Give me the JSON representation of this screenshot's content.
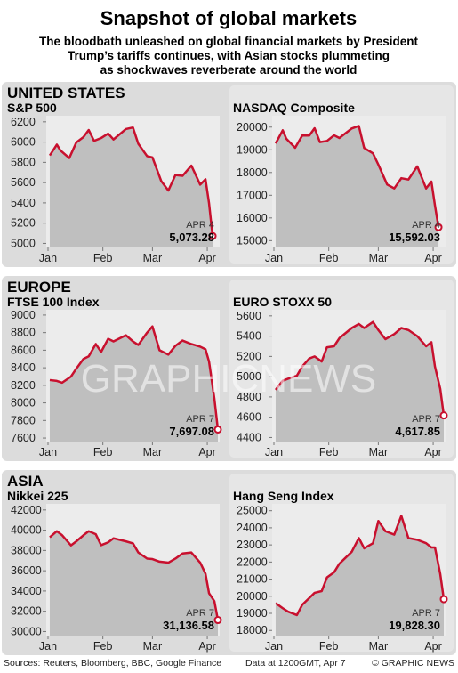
{
  "title": "Snapshot of global markets",
  "subtitle": [
    "The bloodbath unleashed on global financial markets by President",
    "Trump’s tariffs continues, with Asian stocks plummeting",
    "as shockwaves reverberate around the world"
  ],
  "sections": [
    "UNITED STATES",
    "EUROPE",
    "ASIA"
  ],
  "watermark": "GRAPHICNEWS",
  "footer": {
    "sources": "Sources: Reuters, Bloomberg, BBC, Google Finance",
    "note": "Data at 1200GMT, Apr 7",
    "credit": "© GRAPHIC NEWS"
  },
  "chart_data": [
    {
      "type": "line",
      "title": "S&P 500",
      "color": "#c8102e",
      "x": [
        2,
        6,
        8,
        13,
        17,
        21,
        24,
        27,
        31,
        35,
        38,
        45,
        49,
        52,
        57,
        60,
        65,
        69,
        73,
        77,
        82,
        87,
        90,
        92,
        94
      ],
      "values": [
        5868,
        5975,
        5918,
        5842,
        5997,
        6049,
        6119,
        6012,
        6040,
        6084,
        6026,
        6129,
        6144,
        5983,
        5861,
        5849,
        5614,
        5522,
        5675,
        5667,
        5768,
        5580,
        5633,
        5396,
        5073.28
      ],
      "xlim": [
        0,
        98
      ],
      "xticks": [
        {
          "value": 1,
          "label": "Jan"
        },
        {
          "value": 32,
          "label": "Feb"
        },
        {
          "value": 60,
          "label": "Mar"
        },
        {
          "value": 91,
          "label": "Apr"
        }
      ],
      "ylim": [
        4960,
        6260
      ],
      "yticks": [
        5000,
        5200,
        5400,
        5600,
        5800,
        6000,
        6200
      ],
      "annotation_date": "APR 4",
      "annotation_label": "5,073.28"
    },
    {
      "type": "line",
      "title": "NASDAQ Composite",
      "color": "#c8102e",
      "x": [
        2,
        6,
        8,
        13,
        17,
        21,
        24,
        27,
        31,
        35,
        38,
        45,
        49,
        52,
        57,
        60,
        65,
        69,
        73,
        77,
        82,
        87,
        90,
        92,
        94
      ],
      "values": [
        19280,
        19860,
        19490,
        19090,
        19630,
        19630,
        19950,
        19340,
        19390,
        19640,
        19520,
        19940,
        20050,
        19080,
        18840,
        18350,
        17470,
        17300,
        17750,
        17690,
        18270,
        17300,
        17600,
        16550,
        15592.03
      ],
      "xlim": [
        0,
        98
      ],
      "xticks": [
        {
          "value": 1,
          "label": "Jan"
        },
        {
          "value": 32,
          "label": "Feb"
        },
        {
          "value": 60,
          "label": "Mar"
        },
        {
          "value": 91,
          "label": "Apr"
        }
      ],
      "ylim": [
        14700,
        20500
      ],
      "yticks": [
        15000,
        16000,
        17000,
        18000,
        19000,
        20000
      ],
      "annotation_date": "APR 4",
      "annotation_label": "15,592.03"
    },
    {
      "type": "line",
      "title": "FTSE 100 Index",
      "color": "#c8102e",
      "x": [
        2,
        6,
        9,
        14,
        17,
        21,
        24,
        28,
        31,
        35,
        38,
        45,
        49,
        52,
        57,
        60,
        64,
        69,
        73,
        77,
        82,
        87,
        90,
        92,
        95,
        97
      ],
      "values": [
        8260,
        8250,
        8230,
        8300,
        8390,
        8500,
        8530,
        8670,
        8580,
        8730,
        8700,
        8770,
        8700,
        8660,
        8800,
        8870,
        8600,
        8550,
        8650,
        8710,
        8670,
        8640,
        8610,
        8470,
        8050,
        7697.08
      ],
      "xlim": [
        0,
        98
      ],
      "xticks": [
        {
          "value": 1,
          "label": "Jan"
        },
        {
          "value": 32,
          "label": "Feb"
        },
        {
          "value": 60,
          "label": "Mar"
        },
        {
          "value": 91,
          "label": "Apr"
        }
      ],
      "ylim": [
        7560,
        9060
      ],
      "yticks": [
        7600,
        7800,
        8000,
        8200,
        8400,
        8600,
        8800,
        9000
      ],
      "annotation_date": "APR 7",
      "annotation_label": "7,697.08"
    },
    {
      "type": "line",
      "title": "EURO STOXX 50",
      "color": "#c8102e",
      "x": [
        2,
        6,
        9,
        14,
        17,
        21,
        24,
        28,
        31,
        35,
        38,
        45,
        49,
        52,
        57,
        60,
        64,
        69,
        73,
        77,
        82,
        87,
        90,
        92,
        95,
        97
      ],
      "values": [
        4870,
        4960,
        4980,
        5010,
        5100,
        5180,
        5200,
        5150,
        5290,
        5300,
        5380,
        5480,
        5520,
        5480,
        5540,
        5460,
        5370,
        5420,
        5480,
        5460,
        5400,
        5300,
        5340,
        5100,
        4880,
        4617.85
      ],
      "xlim": [
        0,
        98
      ],
      "xticks": [
        {
          "value": 1,
          "label": "Jan"
        },
        {
          "value": 32,
          "label": "Feb"
        },
        {
          "value": 60,
          "label": "Mar"
        },
        {
          "value": 91,
          "label": "Apr"
        }
      ],
      "ylim": [
        4360,
        5660
      ],
      "yticks": [
        4400,
        4600,
        4800,
        5000,
        5200,
        5400,
        5600
      ],
      "annotation_date": "APR 7",
      "annotation_label": "4,617.85"
    },
    {
      "type": "line",
      "title": "Nikkei 225",
      "color": "#c8102e",
      "x": [
        2,
        6,
        9,
        14,
        17,
        21,
        24,
        28,
        31,
        35,
        38,
        45,
        49,
        52,
        57,
        60,
        64,
        69,
        73,
        77,
        82,
        87,
        90,
        92,
        95,
        97
      ],
      "values": [
        39300,
        39900,
        39500,
        38500,
        38900,
        39500,
        39900,
        39600,
        38520,
        38800,
        39200,
        38900,
        38700,
        37800,
        37200,
        37150,
        36900,
        36800,
        37200,
        37700,
        37800,
        36800,
        35700,
        33780,
        33000,
        31136.58
      ],
      "xlim": [
        0,
        98
      ],
      "xticks": [
        {
          "value": 1,
          "label": "Jan"
        },
        {
          "value": 32,
          "label": "Feb"
        },
        {
          "value": 60,
          "label": "Mar"
        },
        {
          "value": 91,
          "label": "Apr"
        }
      ],
      "ylim": [
        29600,
        42600
      ],
      "yticks": [
        30000,
        32000,
        34000,
        36000,
        38000,
        40000,
        42000
      ],
      "annotation_date": "APR 7",
      "annotation_label": "31,136.58"
    },
    {
      "type": "line",
      "title": "Hang Seng Index",
      "color": "#c8102e",
      "x": [
        2,
        6,
        9,
        14,
        17,
        21,
        24,
        28,
        31,
        35,
        38,
        45,
        49,
        52,
        57,
        60,
        64,
        69,
        73,
        77,
        82,
        87,
        90,
        92,
        95,
        97
      ],
      "values": [
        19600,
        19300,
        19100,
        18900,
        19500,
        19900,
        20200,
        20300,
        21100,
        21400,
        21900,
        22600,
        23400,
        22800,
        23100,
        24400,
        23800,
        23600,
        24700,
        23400,
        23300,
        23100,
        22850,
        22850,
        21300,
        19828.3
      ],
      "xlim": [
        0,
        98
      ],
      "xticks": [
        {
          "value": 1,
          "label": "Jan"
        },
        {
          "value": 32,
          "label": "Feb"
        },
        {
          "value": 60,
          "label": "Mar"
        },
        {
          "value": 91,
          "label": "Apr"
        }
      ],
      "ylim": [
        17700,
        25400
      ],
      "yticks": [
        18000,
        19000,
        20000,
        21000,
        22000,
        23000,
        24000,
        25000
      ],
      "annotation_date": "APR 7",
      "annotation_label": "19,828.30"
    }
  ]
}
